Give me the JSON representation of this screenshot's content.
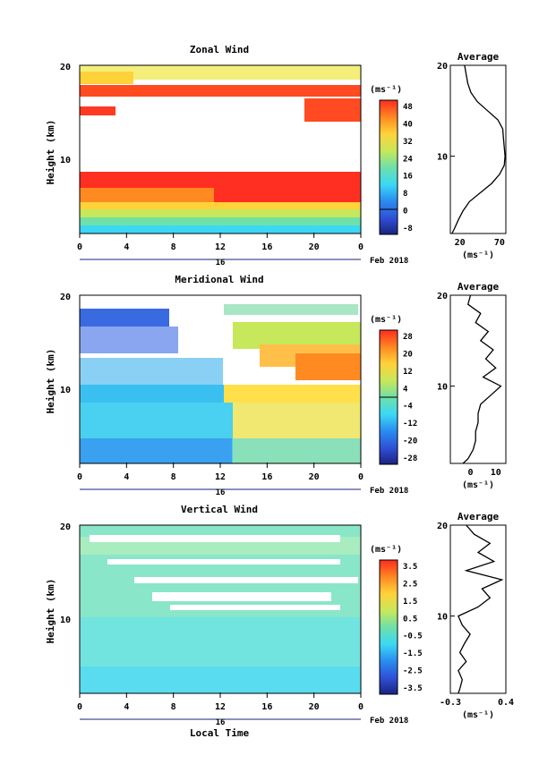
{
  "figure": {
    "date_label": "Feb 2018",
    "day_label": "16",
    "bottom_xlabel": "Local Time"
  },
  "chart_data": [
    {
      "type": "heatmap",
      "title": "Zonal Wind",
      "xlabel": "",
      "ylabel": "Height (km)",
      "unit": "(ms⁻¹)",
      "xticks": [
        "0",
        "4",
        "8",
        "12",
        "16",
        "20",
        "0"
      ],
      "yticks": [
        "10",
        "20"
      ],
      "xlim": [
        0,
        24
      ],
      "ylim": [
        1.5,
        20
      ],
      "colorbar_ticks": [
        "48",
        "40",
        "32",
        "24",
        "16",
        "8",
        "0",
        "-8"
      ],
      "colorbar_range": [
        -12,
        52
      ],
      "profile": {
        "title": "Average",
        "xlabel": "(ms⁻¹)",
        "xticks": [
          "20",
          "70"
        ],
        "xlim": [
          8,
          78
        ],
        "heights": [
          1.5,
          2,
          3,
          4,
          5,
          6,
          7,
          8,
          9,
          10,
          11,
          12,
          13,
          14,
          15,
          16,
          17,
          18,
          19,
          20
        ],
        "values": [
          10,
          13,
          18,
          24,
          32,
          46,
          60,
          70,
          76,
          77,
          76,
          75,
          74,
          68,
          55,
          42,
          34,
          30,
          28,
          26
        ]
      }
    },
    {
      "type": "heatmap",
      "title": "Meridional Wind",
      "xlabel": "",
      "ylabel": "Height (km)",
      "unit": "(ms⁻¹)",
      "xticks": [
        "0",
        "4",
        "8",
        "12",
        "16",
        "20",
        "0"
      ],
      "yticks": [
        "10",
        "20"
      ],
      "xlim": [
        0,
        24
      ],
      "ylim": [
        1.5,
        20
      ],
      "colorbar_ticks": [
        "28",
        "20",
        "12",
        "4",
        "-4",
        "-12",
        "-20",
        "-28"
      ],
      "colorbar_range": [
        -32,
        32
      ],
      "profile": {
        "title": "Average",
        "xlabel": "(ms⁻¹)",
        "xticks": [
          "0",
          "10"
        ],
        "xlim": [
          -8,
          14
        ],
        "heights": [
          1.5,
          2,
          3,
          4,
          5,
          6,
          7,
          8,
          9,
          10,
          11,
          12,
          13,
          14,
          15,
          16,
          17,
          18,
          19,
          20
        ],
        "values": [
          -3,
          -1,
          1,
          2,
          2,
          3,
          3,
          4,
          8,
          12,
          5,
          10,
          6,
          9,
          4,
          7,
          2,
          4,
          -1,
          0
        ]
      }
    },
    {
      "type": "heatmap",
      "title": "Vertical Wind",
      "xlabel": "Local Time",
      "ylabel": "Height (km)",
      "unit": "(ms⁻¹)",
      "xticks": [
        "0",
        "4",
        "8",
        "12",
        "16",
        "20",
        "0"
      ],
      "yticks": [
        "10",
        "20"
      ],
      "xlim": [
        0,
        24
      ],
      "ylim": [
        1.5,
        20
      ],
      "colorbar_ticks": [
        "3.5",
        "2.5",
        "1.5",
        "0.5",
        "-0.5",
        "-1.5",
        "-2.5",
        "-3.5"
      ],
      "colorbar_range": [
        -4,
        4
      ],
      "profile": {
        "title": "Average",
        "xlabel": "(ms⁻¹)",
        "xticks": [
          "-0.3",
          "0.4"
        ],
        "xlim": [
          -0.3,
          0.4
        ],
        "heights": [
          1.5,
          2,
          3,
          4,
          5,
          6,
          7,
          8,
          9,
          10,
          11,
          12,
          13,
          14,
          15,
          16,
          17,
          18,
          19,
          20
        ],
        "values": [
          -0.2,
          -0.18,
          -0.15,
          -0.2,
          -0.1,
          -0.18,
          -0.12,
          -0.05,
          -0.15,
          -0.2,
          0.05,
          0.2,
          0.1,
          0.35,
          -0.1,
          0.25,
          0.05,
          0.2,
          0.0,
          -0.1
        ]
      }
    }
  ]
}
